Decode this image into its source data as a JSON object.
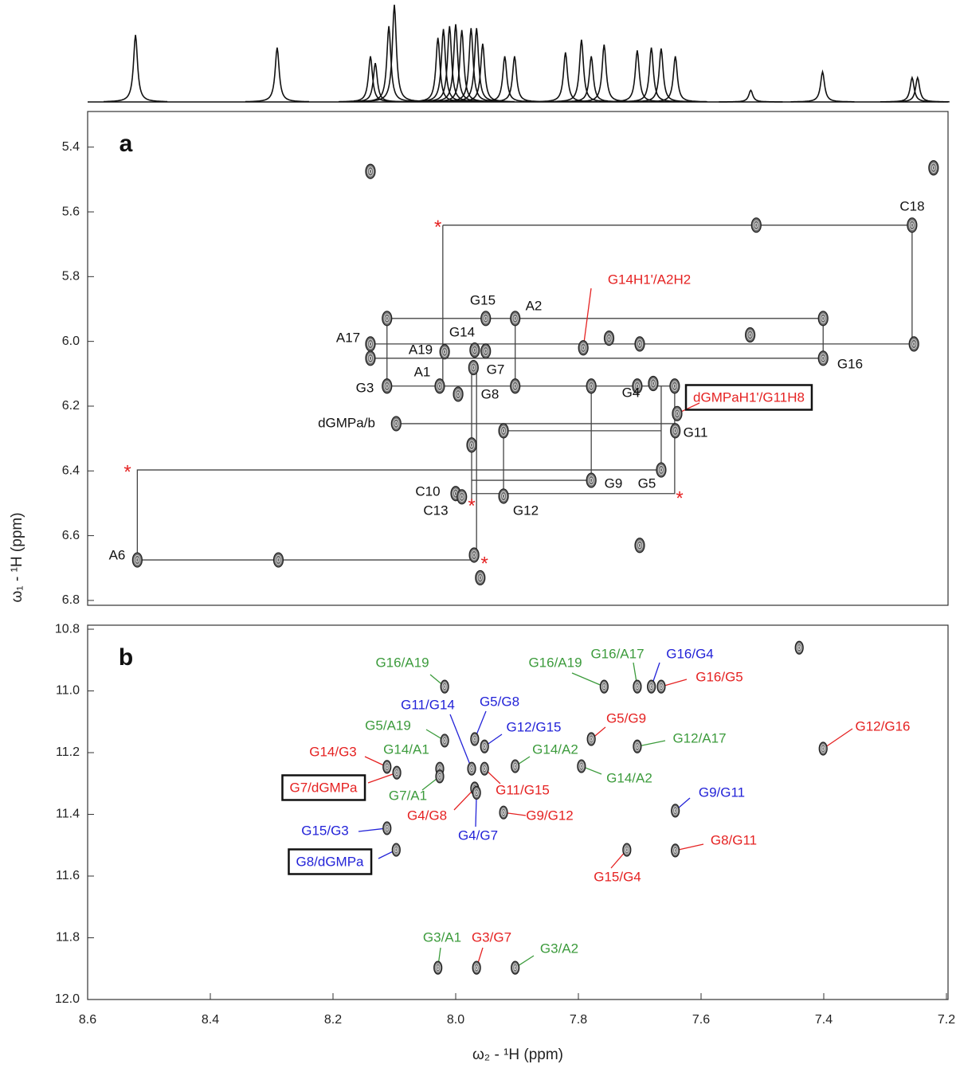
{
  "chart_data": [
    {
      "type": "spectrum",
      "xlim": [
        8.6,
        7.2
      ],
      "x": [
        8.522,
        8.291,
        8.139,
        8.131,
        8.109,
        8.1,
        8.029,
        8.02,
        8.01,
        8.0,
        7.99,
        7.975,
        7.966,
        7.956,
        7.92,
        7.904,
        7.821,
        7.795,
        7.779,
        7.758,
        7.704,
        7.681,
        7.665,
        7.642,
        7.519,
        7.402,
        7.256,
        7.247
      ],
      "values": [
        69,
        56,
        47,
        40,
        78,
        100,
        66,
        75,
        78,
        80,
        74,
        76,
        76,
        60,
        47,
        47,
        51,
        64,
        47,
        59,
        53,
        56,
        55,
        47,
        12,
        31,
        25,
        25
      ],
      "color": "#111111"
    },
    {
      "type": "scatter",
      "panel": "a",
      "xlim": [
        8.6,
        7.2
      ],
      "ylim": [
        5.29,
        6.815
      ],
      "yticks": [
        5.4,
        5.6,
        5.8,
        {
          "value": 6,
          "label": "6.0"
        },
        6.2,
        6.4,
        6.6,
        6.8
      ],
      "ylabel": "ω₁ - ¹H  (ppm)",
      "peaks": [
        {
          "x": 7.256,
          "y": 5.641,
          "label": "C18",
          "color": "#111111"
        },
        {
          "x": 7.792,
          "y": 6.02,
          "label": "G14H1'/A2H2",
          "color": "#e52222"
        },
        {
          "x": 7.951,
          "y": 5.929,
          "label": "G15",
          "color": "#111111"
        },
        {
          "x": 7.903,
          "y": 5.929,
          "label": "A2",
          "color": "#111111"
        },
        {
          "x": 7.401,
          "y": 6.052,
          "label": "G16",
          "color": "#111111"
        },
        {
          "x": 8.139,
          "y": 6.008,
          "label": "A17",
          "color": "#111111"
        },
        {
          "x": 8.018,
          "y": 6.032,
          "label": "A19",
          "color": "#111111"
        },
        {
          "x": 7.969,
          "y": 6.027,
          "label": "G14",
          "color": "#111111"
        },
        {
          "x": 7.971,
          "y": 6.081,
          "label": "G7",
          "color": "#111111"
        },
        {
          "x": 8.112,
          "y": 6.138,
          "label": "G3",
          "color": "#111111"
        },
        {
          "x": 8.026,
          "y": 6.138,
          "label": "A1",
          "color": "#111111"
        },
        {
          "x": 7.996,
          "y": 6.163,
          "label": "G8",
          "color": "#111111"
        },
        {
          "x": 7.678,
          "y": 6.13,
          "label": "G4",
          "color": "#111111"
        },
        {
          "x": 7.639,
          "y": 6.223,
          "label": "dGMPaH1'/G11H8",
          "color": "#e52222",
          "boxed": true
        },
        {
          "x": 7.642,
          "y": 6.276,
          "label": "G11",
          "color": "#111111"
        },
        {
          "x": 8.097,
          "y": 6.254,
          "label": "dGMPa/b",
          "color": "#111111"
        },
        {
          "x": 7.779,
          "y": 6.429,
          "label": "G9",
          "color": "#111111"
        },
        {
          "x": 7.665,
          "y": 6.397,
          "label": "G5",
          "color": "#111111"
        },
        {
          "x": 8.0,
          "y": 6.47,
          "label": "C10",
          "color": "#111111"
        },
        {
          "x": 7.99,
          "y": 6.48,
          "label": "C13",
          "color": "#111111"
        },
        {
          "x": 7.922,
          "y": 6.478,
          "label": "G12",
          "color": "#111111"
        },
        {
          "x": 8.519,
          "y": 6.675,
          "label": "A6",
          "color": "#111111"
        },
        {
          "x": 8.139,
          "y": 5.475
        },
        {
          "x": 7.221,
          "y": 5.464
        },
        {
          "x": 7.51,
          "y": 5.641
        },
        {
          "x": 7.52,
          "y": 5.98
        },
        {
          "x": 7.7,
          "y": 6.008
        },
        {
          "x": 7.75,
          "y": 5.99
        },
        {
          "x": 8.289,
          "y": 6.675
        },
        {
          "x": 7.7,
          "y": 6.63
        },
        {
          "x": 7.96,
          "y": 6.73
        },
        {
          "x": 7.97,
          "y": 6.66
        },
        {
          "x": 7.922,
          "y": 6.276
        },
        {
          "x": 7.974,
          "y": 6.32
        },
        {
          "x": 8.112,
          "y": 5.929
        },
        {
          "x": 7.401,
          "y": 5.929
        },
        {
          "x": 7.903,
          "y": 6.138
        },
        {
          "x": 7.779,
          "y": 6.138
        },
        {
          "x": 7.704,
          "y": 6.138
        },
        {
          "x": 8.139,
          "y": 6.052
        },
        {
          "x": 7.951,
          "y": 6.03
        },
        {
          "x": 7.253,
          "y": 6.008
        },
        {
          "x": 7.643,
          "y": 6.138
        }
      ],
      "stars": {
        "symbol": "*",
        "color": "#e52222",
        "x": [
          8.029,
          8.535,
          7.974,
          7.635,
          7.953
        ],
        "y": [
          5.641,
          6.397,
          6.502,
          6.479,
          6.68
        ]
      },
      "walk": [
        {
          "x": [
            8.021,
            7.256,
            7.256,
            8.139
          ],
          "y": [
            5.641,
            5.641,
            6.008,
            6.008
          ]
        },
        {
          "x": [
            8.112,
            7.401,
            7.401,
            8.139
          ],
          "y": [
            5.929,
            5.929,
            6.052,
            6.052
          ]
        },
        {
          "x": [
            8.112,
            8.112
          ],
          "y": [
            5.929,
            6.138
          ]
        },
        {
          "x": [
            8.021,
            8.021
          ],
          "y": [
            5.641,
            6.138
          ]
        },
        {
          "x": [
            8.112,
            7.643
          ],
          "y": [
            6.138,
            6.138
          ]
        },
        {
          "x": [
            7.903,
            7.903
          ],
          "y": [
            5.929,
            6.138
          ]
        },
        {
          "x": [
            7.779,
            7.779
          ],
          "y": [
            6.138,
            6.429
          ]
        },
        {
          "x": [
            8.097,
            7.642
          ],
          "y": [
            6.254,
            6.254
          ]
        },
        {
          "x": [
            7.922,
            7.922,
            7.665
          ],
          "y": [
            6.478,
            6.276,
            6.276
          ]
        },
        {
          "x": [
            7.665,
            7.665
          ],
          "y": [
            6.138,
            6.397
          ]
        },
        {
          "x": [
            7.665,
            8.519,
            8.519,
            7.966,
            7.966
          ],
          "y": [
            6.397,
            6.397,
            6.675,
            6.675,
            6.081
          ]
        },
        {
          "x": [
            7.974,
            7.779
          ],
          "y": [
            6.429,
            6.429
          ]
        },
        {
          "x": [
            7.974,
            7.643,
            7.643
          ],
          "y": [
            6.47,
            6.47,
            6.138
          ]
        },
        {
          "x": [
            7.974,
            7.974
          ],
          "y": [
            6.081,
            6.502
          ]
        }
      ]
    },
    {
      "type": "scatter",
      "panel": "b",
      "xlim": [
        8.6,
        7.2
      ],
      "ylim": [
        10.787,
        12.0
      ],
      "xticks": [
        8.6,
        8.4,
        8.2,
        {
          "value": 8,
          "label": "8.0"
        },
        7.8,
        7.6,
        7.4,
        7.2
      ],
      "yticks": [
        10.8,
        {
          "value": 11,
          "label": "11.0"
        },
        11.2,
        11.4,
        11.6,
        11.8,
        {
          "value": 12,
          "label": "12.0"
        }
      ],
      "xlabel": "ω₂ - ¹H  (ppm)",
      "peaks": [
        {
          "x": 8.018,
          "y": 10.986,
          "label": "G16/A19",
          "color": "#3c9b3c"
        },
        {
          "x": 7.758,
          "y": 10.986,
          "label": "G16/A19",
          "color": "#3c9b3c"
        },
        {
          "x": 7.704,
          "y": 10.986,
          "label": "G16/A17",
          "color": "#3c9b3c"
        },
        {
          "x": 7.681,
          "y": 10.986,
          "label": "G16/G4",
          "color": "#2323d8"
        },
        {
          "x": 7.665,
          "y": 10.986,
          "label": "G16/G5",
          "color": "#e52222"
        },
        {
          "x": 7.974,
          "y": 11.252,
          "label": "G11/G14",
          "color": "#2323d8"
        },
        {
          "x": 7.969,
          "y": 11.156,
          "label": "G5/G8",
          "color": "#2323d8"
        },
        {
          "x": 7.953,
          "y": 11.18,
          "label": "G12/G15",
          "color": "#2323d8"
        },
        {
          "x": 8.018,
          "y": 11.161,
          "label": "G5/A19",
          "color": "#3c9b3c"
        },
        {
          "x": 8.112,
          "y": 11.246,
          "label": "G14/G3",
          "color": "#e52222"
        },
        {
          "x": 8.096,
          "y": 11.265,
          "label": "G7/dGMPa",
          "color": "#e52222",
          "boxed": true
        },
        {
          "x": 8.026,
          "y": 11.252,
          "label": "G14/A1",
          "color": "#3c9b3c"
        },
        {
          "x": 8.026,
          "y": 11.277,
          "label": "G7/A1",
          "color": "#3c9b3c"
        },
        {
          "x": 7.903,
          "y": 11.244,
          "label": "G14/A2",
          "color": "#3c9b3c"
        },
        {
          "x": 7.795,
          "y": 11.244,
          "label": "G14/A2",
          "color": "#3c9b3c"
        },
        {
          "x": 7.953,
          "y": 11.252,
          "label": "G11/G15",
          "color": "#e52222"
        },
        {
          "x": 7.969,
          "y": 11.316,
          "label": "G4/G8",
          "color": "#e52222"
        },
        {
          "x": 7.966,
          "y": 11.33,
          "label": "G4/G7",
          "color": "#2323d8"
        },
        {
          "x": 7.922,
          "y": 11.394,
          "label": "G9/G12",
          "color": "#e52222"
        },
        {
          "x": 7.779,
          "y": 11.156,
          "label": "G5/G9",
          "color": "#e52222"
        },
        {
          "x": 7.704,
          "y": 11.18,
          "label": "G12/A17",
          "color": "#3c9b3c"
        },
        {
          "x": 7.401,
          "y": 11.187,
          "label": "G12/G16",
          "color": "#e52222"
        },
        {
          "x": 7.642,
          "y": 11.388,
          "label": "G9/G11",
          "color": "#2323d8"
        },
        {
          "x": 8.112,
          "y": 11.445,
          "label": "G15/G3",
          "color": "#2323d8"
        },
        {
          "x": 8.097,
          "y": 11.515,
          "label": "G8/dGMPa",
          "color": "#2323d8",
          "boxed": true
        },
        {
          "x": 7.721,
          "y": 11.515,
          "label": "G15/G4",
          "color": "#e52222"
        },
        {
          "x": 7.642,
          "y": 11.517,
          "label": "G8/G11",
          "color": "#e52222"
        },
        {
          "x": 8.029,
          "y": 11.897,
          "label": "G3/A1",
          "color": "#3c9b3c"
        },
        {
          "x": 7.966,
          "y": 11.897,
          "label": "G3/G7",
          "color": "#e52222"
        },
        {
          "x": 7.903,
          "y": 11.897,
          "label": "G3/A2",
          "color": "#3c9b3c"
        },
        {
          "x": 7.44,
          "y": 10.86
        }
      ]
    }
  ]
}
